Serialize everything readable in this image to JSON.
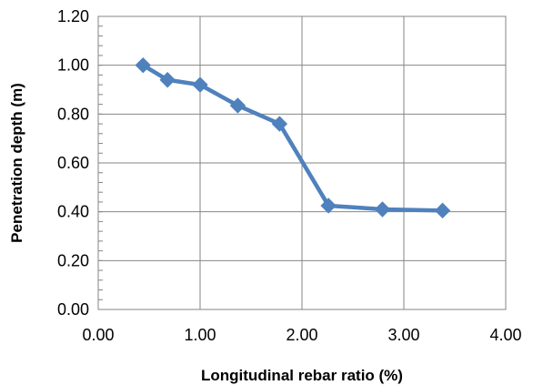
{
  "chart_data": {
    "type": "line",
    "title": "",
    "xlabel": "Longitudinal rebar ratio (%)",
    "ylabel": "Penetration depth (m)",
    "xlim": [
      0,
      4
    ],
    "ylim": [
      0,
      1.2
    ],
    "x_ticks": [
      "0.00",
      "1.00",
      "2.00",
      "3.00",
      "4.00"
    ],
    "y_ticks": [
      "0.00",
      "0.20",
      "0.40",
      "0.60",
      "0.80",
      "1.00",
      "1.20"
    ],
    "grid": "major gridlines on both axes",
    "legend": "none",
    "series": [
      {
        "color": "#4f81bd",
        "marker": "diamond",
        "x": [
          0.44,
          0.68,
          1.0,
          1.37,
          1.78,
          2.26,
          2.79,
          3.38
        ],
        "values": [
          1.0,
          0.94,
          0.92,
          0.835,
          0.76,
          0.425,
          0.41,
          0.405
        ]
      }
    ]
  }
}
